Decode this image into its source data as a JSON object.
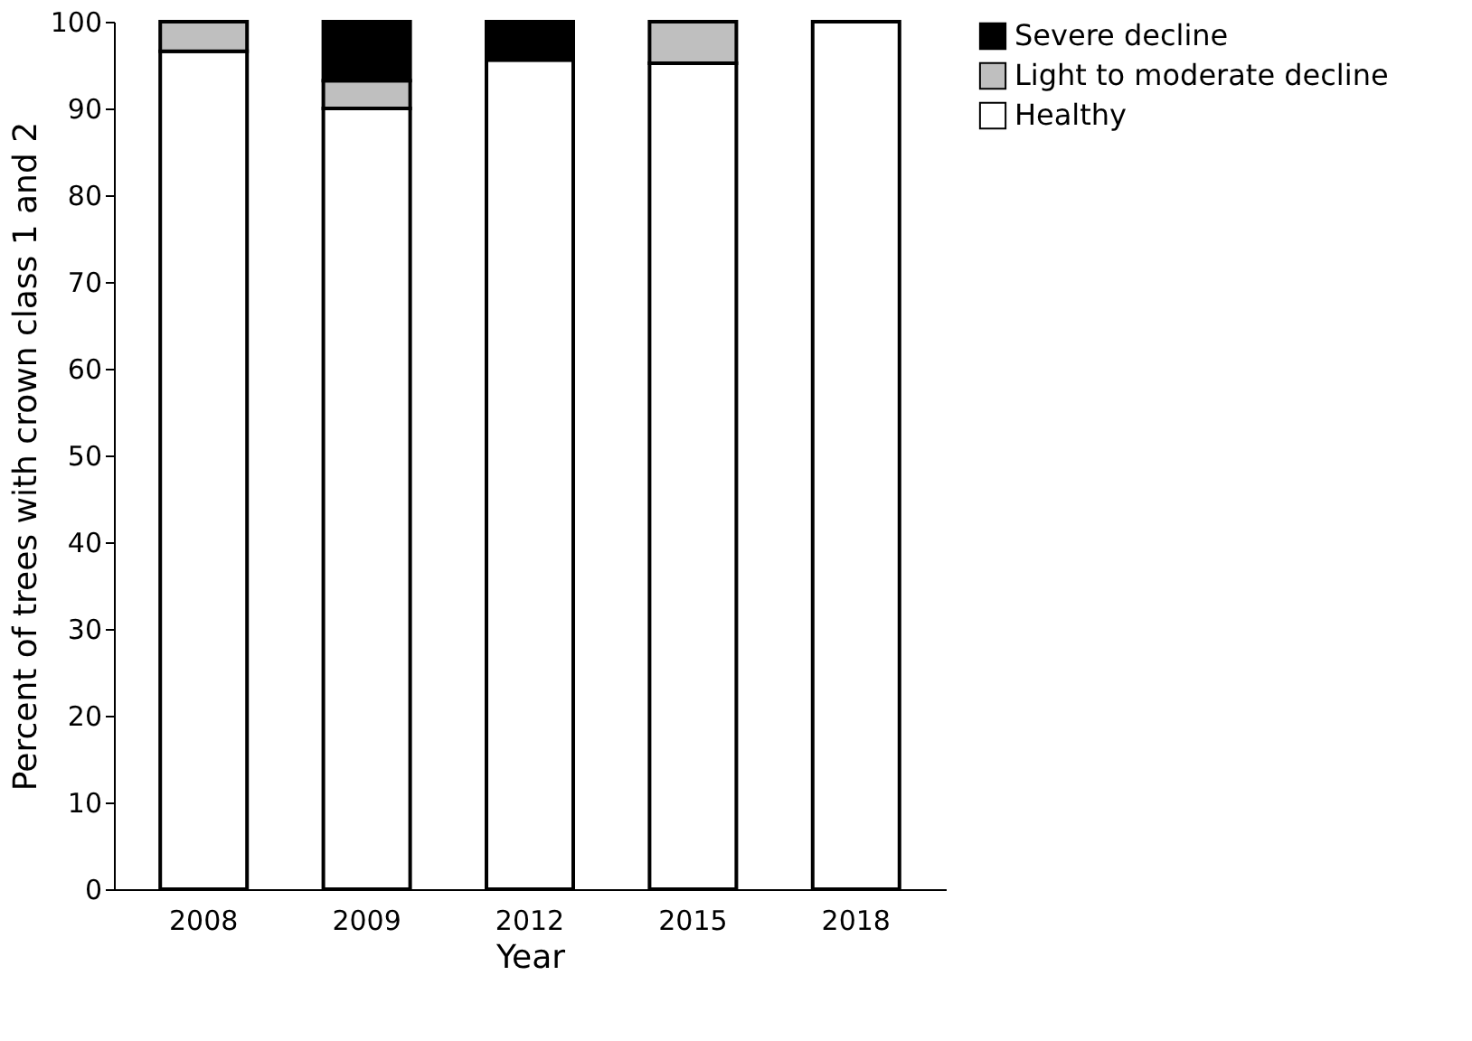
{
  "chart_data": {
    "type": "bar",
    "stacked": true,
    "xlabel": "Year",
    "ylabel": "Percent of trees with crown class 1 and 2",
    "categories": [
      "2008",
      "2009",
      "2012",
      "2015",
      "2018"
    ],
    "series": [
      {
        "name": "Healthy",
        "color": "#ffffff",
        "values": [
          96.6,
          90,
          95.6,
          95.2,
          100
        ]
      },
      {
        "name": "Light to moderate decline",
        "color": "#bfbfbf",
        "values": [
          3.4,
          3.2,
          0,
          4.8,
          0
        ]
      },
      {
        "name": "Severe decline",
        "color": "#000000",
        "values": [
          0,
          6.8,
          4.4,
          0,
          0
        ]
      }
    ],
    "ylim": [
      0,
      100
    ],
    "yticks": [
      0,
      10,
      20,
      30,
      40,
      50,
      60,
      70,
      80,
      90,
      100
    ],
    "grid": false,
    "legend": "right"
  }
}
